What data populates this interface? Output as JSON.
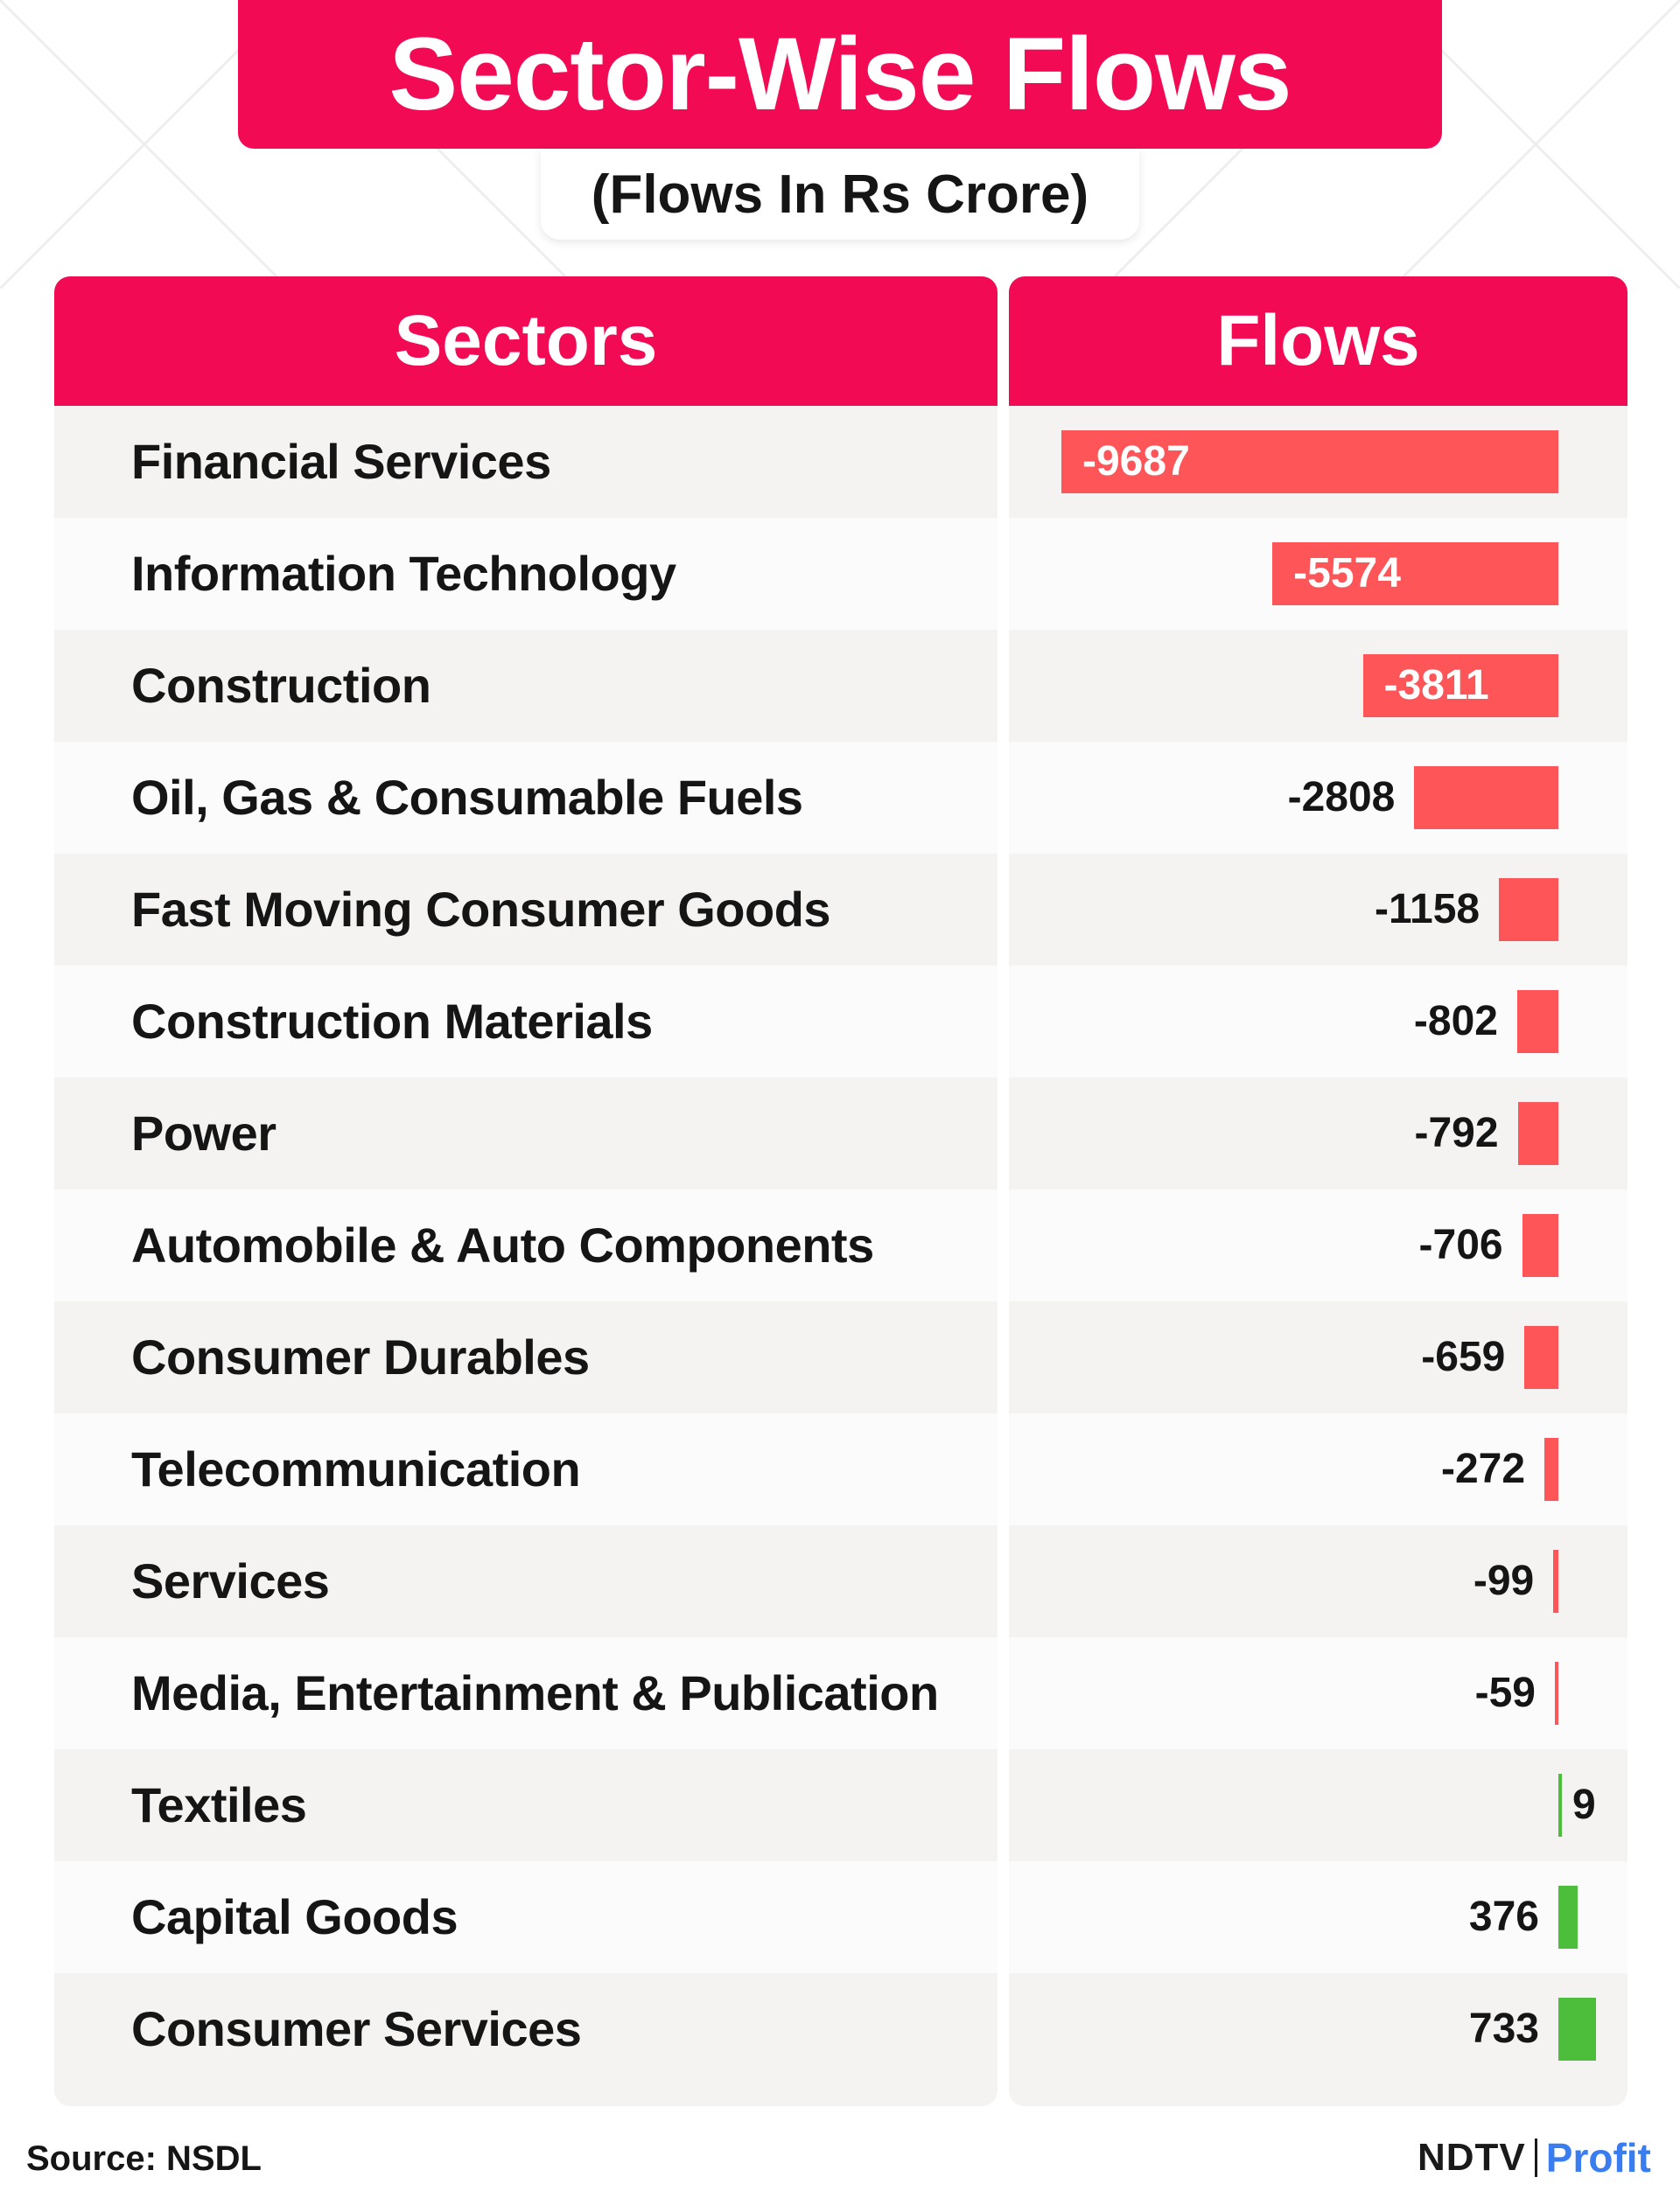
{
  "title": "Sector-Wise Flows",
  "subtitle": "(Flows In Rs Crore)",
  "headers": {
    "sectors": "Sectors",
    "flows": "Flows"
  },
  "source": "Source: NSDL",
  "brand": {
    "ndtv": "NDTV",
    "profit": "Profit"
  },
  "colors": {
    "accent": "#f20a55",
    "negative": "#fe5558",
    "positive": "#4cbe3c"
  },
  "chart_data": {
    "type": "bar",
    "orientation": "horizontal",
    "title": "Sector-Wise Flows",
    "subtitle": "(Flows In Rs Crore)",
    "categories": [
      "Financial Services",
      "Information Technology",
      "Construction",
      "Oil, Gas & Consumable Fuels",
      "Fast Moving Consumer Goods",
      "Construction Materials",
      "Power",
      "Automobile & Auto Components",
      "Consumer Durables",
      "Telecommunication",
      "Services",
      "Media, Entertainment & Publication",
      "Textiles",
      "Capital Goods",
      "Consumer Services"
    ],
    "values": [
      -9687,
      -5574,
      -3811,
      -2808,
      -1158,
      -802,
      -792,
      -706,
      -659,
      -272,
      -99,
      -59,
      9,
      376,
      733
    ],
    "labels": [
      "-9687",
      "-5574",
      "-3811",
      "-2808",
      "-1158",
      "-802",
      "-792",
      "-706",
      "-659",
      "-272",
      "-99",
      "-59",
      "9",
      "376",
      "733"
    ],
    "xlabel": "",
    "ylabel": "",
    "grid": false,
    "legend": "none"
  }
}
